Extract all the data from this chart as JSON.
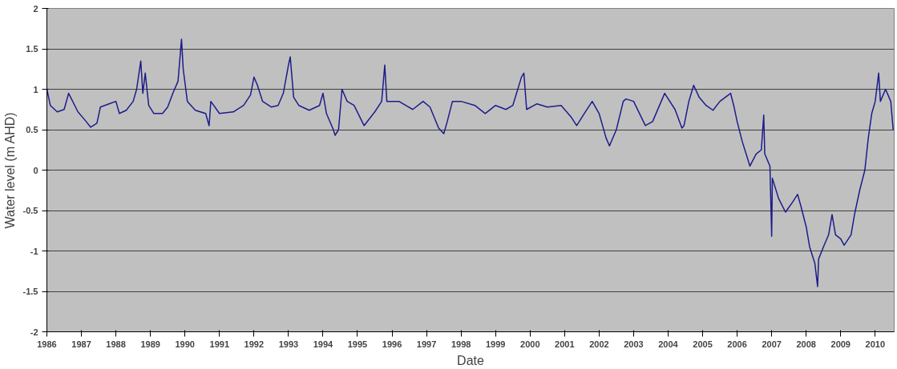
{
  "chart_data": {
    "type": "line",
    "xlabel": "Date",
    "ylabel": "Water level (m AHD)",
    "x": [
      1986.0,
      1986.1,
      1986.3,
      1986.5,
      1986.63,
      1986.9,
      1987.1,
      1987.27,
      1987.45,
      1987.55,
      1987.8,
      1988.0,
      1988.1,
      1988.3,
      1988.5,
      1988.6,
      1988.72,
      1988.78,
      1988.85,
      1988.95,
      1989.1,
      1989.35,
      1989.5,
      1989.65,
      1989.8,
      1989.9,
      1989.95,
      1990.07,
      1990.3,
      1990.6,
      1990.7,
      1990.75,
      1991.0,
      1991.4,
      1991.7,
      1991.9,
      1992.0,
      1992.1,
      1992.25,
      1992.5,
      1992.7,
      1992.85,
      1993.0,
      1993.05,
      1993.15,
      1993.3,
      1993.6,
      1993.9,
      1994.0,
      1994.1,
      1994.3,
      1994.35,
      1994.45,
      1994.55,
      1994.7,
      1994.9,
      1995.19,
      1995.5,
      1995.7,
      1995.79,
      1995.85,
      1996.2,
      1996.6,
      1996.9,
      1997.1,
      1997.35,
      1997.5,
      1997.6,
      1997.75,
      1998.0,
      1998.4,
      1998.7,
      1999.0,
      1999.3,
      1999.5,
      1999.75,
      1999.82,
      1999.9,
      2000.2,
      2000.5,
      2000.9,
      2001.2,
      2001.35,
      2001.6,
      2001.8,
      2002.0,
      2002.2,
      2002.3,
      2002.5,
      2002.7,
      2002.78,
      2003.0,
      2003.34,
      2003.55,
      2003.8,
      2003.9,
      2004.2,
      2004.4,
      2004.46,
      2004.6,
      2004.74,
      2004.9,
      2005.1,
      2005.3,
      2005.5,
      2005.81,
      2005.9,
      2006.0,
      2006.15,
      2006.37,
      2006.55,
      2006.7,
      2006.77,
      2006.8,
      2006.95,
      2007.0,
      2007.02,
      2007.2,
      2007.4,
      2007.6,
      2007.75,
      2007.85,
      2008.0,
      2008.1,
      2008.25,
      2008.33,
      2008.36,
      2008.5,
      2008.65,
      2008.75,
      2008.85,
      2009.0,
      2009.1,
      2009.3,
      2009.4,
      2009.55,
      2009.7,
      2009.8,
      2009.9,
      2010.0,
      2010.1,
      2010.15,
      2010.3,
      2010.45,
      2010.52
    ],
    "series": [
      {
        "color": "#1c1c8c",
        "values": [
          1.0,
          0.8,
          0.72,
          0.75,
          0.95,
          0.72,
          0.62,
          0.53,
          0.58,
          0.78,
          0.82,
          0.85,
          0.7,
          0.74,
          0.85,
          1.0,
          1.35,
          0.95,
          1.2,
          0.8,
          0.7,
          0.7,
          0.78,
          0.95,
          1.1,
          1.62,
          1.25,
          0.85,
          0.74,
          0.7,
          0.55,
          0.85,
          0.7,
          0.72,
          0.8,
          0.93,
          1.15,
          1.05,
          0.85,
          0.78,
          0.8,
          0.95,
          1.3,
          1.4,
          0.9,
          0.8,
          0.74,
          0.8,
          0.95,
          0.7,
          0.5,
          0.43,
          0.5,
          1.0,
          0.85,
          0.8,
          0.55,
          0.72,
          0.85,
          1.3,
          0.85,
          0.85,
          0.75,
          0.85,
          0.78,
          0.52,
          0.45,
          0.6,
          0.85,
          0.85,
          0.8,
          0.7,
          0.8,
          0.75,
          0.8,
          1.15,
          1.2,
          0.75,
          0.82,
          0.78,
          0.8,
          0.65,
          0.55,
          0.72,
          0.85,
          0.7,
          0.4,
          0.3,
          0.5,
          0.85,
          0.88,
          0.85,
          0.55,
          0.6,
          0.85,
          0.95,
          0.75,
          0.52,
          0.55,
          0.85,
          1.05,
          0.9,
          0.8,
          0.74,
          0.85,
          0.95,
          0.8,
          0.6,
          0.35,
          0.05,
          0.2,
          0.25,
          0.68,
          0.2,
          0.05,
          -0.82,
          -0.1,
          -0.35,
          -0.52,
          -0.4,
          -0.3,
          -0.45,
          -0.7,
          -0.95,
          -1.15,
          -1.44,
          -1.1,
          -0.95,
          -0.8,
          -0.55,
          -0.8,
          -0.85,
          -0.93,
          -0.8,
          -0.55,
          -0.25,
          0.0,
          0.4,
          0.7,
          0.85,
          1.2,
          0.85,
          1.0,
          0.85,
          0.5
        ]
      }
    ],
    "xlim": [
      1986,
      2010.55
    ],
    "xticks": [
      1986,
      1987,
      1988,
      1989,
      1990,
      1991,
      1992,
      1993,
      1994,
      1995,
      1996,
      1997,
      1998,
      1999,
      2000,
      2001,
      2002,
      2003,
      2004,
      2005,
      2006,
      2007,
      2008,
      2009,
      2010
    ],
    "ylim": [
      -2,
      2
    ],
    "yticks": [
      2,
      1.5,
      1,
      0.5,
      0,
      -0.5,
      -1,
      -1.5,
      -2
    ],
    "grid": "y",
    "marker": "none",
    "line_style": "solid"
  }
}
